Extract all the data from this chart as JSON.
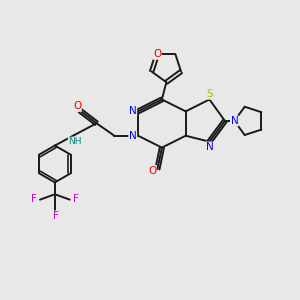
{
  "background_color": "#e8e8e8",
  "bond_color": "#1a1a1a",
  "atom_colors": {
    "N": "#0000ee",
    "O": "#ee0000",
    "S": "#b8b800",
    "F": "#cc00cc",
    "H": "#008888",
    "C": "#1a1a1a"
  },
  "figsize": [
    3.0,
    3.0
  ],
  "dpi": 100
}
